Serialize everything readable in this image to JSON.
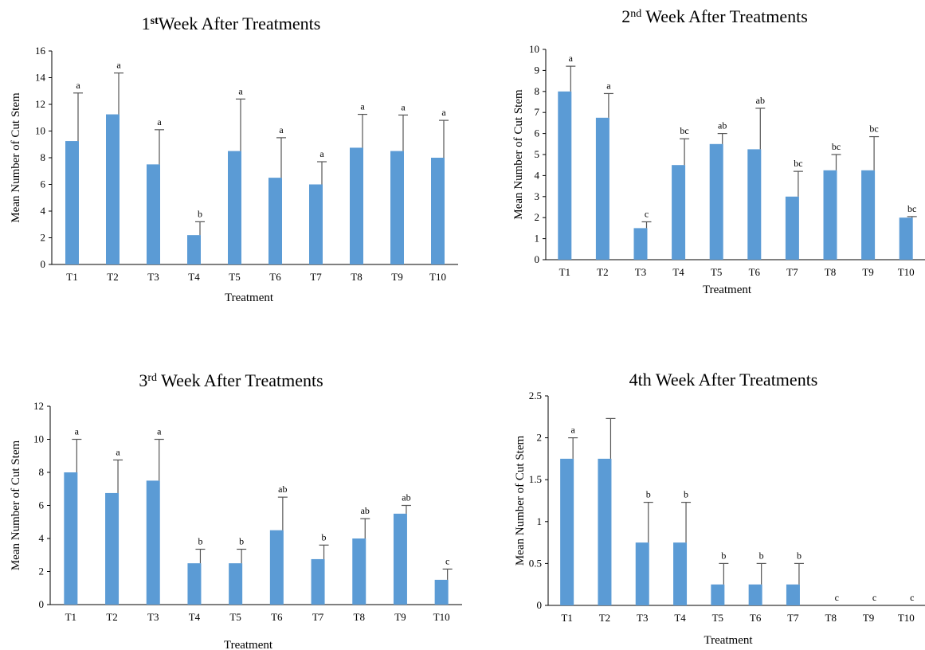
{
  "chart_data": [
    {
      "type": "bar",
      "title_main": "Week After Treatments",
      "title_prefix": "1",
      "title_sup": "st",
      "xlabel": "Treatment",
      "ylabel": "Mean Number of Cut Stem",
      "ylim": [
        0,
        16
      ],
      "yticks": [
        0,
        2,
        4,
        6,
        8,
        10,
        12,
        14,
        16
      ],
      "categories": [
        "T1",
        "T2",
        "T3",
        "T4",
        "T5",
        "T6",
        "T7",
        "T8",
        "T9",
        "T10"
      ],
      "values": [
        9.25,
        11.25,
        7.5,
        2.2,
        8.5,
        6.5,
        6.0,
        8.75,
        8.5,
        8.0
      ],
      "errors": [
        3.6,
        3.1,
        2.6,
        1.0,
        3.9,
        3.0,
        1.7,
        2.5,
        2.7,
        2.8
      ],
      "letters": [
        "a",
        "a",
        "a",
        "b",
        "a",
        "a",
        "a",
        "a",
        "a",
        "a"
      ],
      "color": "#5b9bd5"
    },
    {
      "type": "bar",
      "title_main": " Week After Treatments",
      "title_prefix": "2",
      "title_sup": "nd",
      "xlabel": "Treatment",
      "ylabel": "Mean Number of Cut Stem",
      "ylim": [
        0,
        10
      ],
      "yticks": [
        0,
        1,
        2,
        3,
        4,
        5,
        6,
        7,
        8,
        9,
        10
      ],
      "categories": [
        "T1",
        "T2",
        "T3",
        "T4",
        "T5",
        "T6",
        "T7",
        "T8",
        "T9",
        "T10"
      ],
      "values": [
        8.0,
        6.75,
        1.5,
        4.5,
        5.5,
        5.25,
        3.0,
        4.25,
        4.25,
        2.0
      ],
      "errors": [
        1.2,
        1.15,
        0.3,
        1.25,
        0.5,
        1.95,
        1.2,
        0.75,
        1.6,
        0.05
      ],
      "letters": [
        "a",
        "a",
        "c",
        "bc",
        "ab",
        "ab",
        "bc",
        "bc",
        "bc",
        "bc"
      ],
      "color": "#5b9bd5"
    },
    {
      "type": "bar",
      "title_main": " Week After Treatments",
      "title_prefix": "3",
      "title_sup": "rd",
      "xlabel": "Treatment",
      "ylabel": "Mean Number of  Cut Stem",
      "ylim": [
        0,
        12
      ],
      "yticks": [
        0,
        2,
        4,
        6,
        8,
        10,
        12
      ],
      "categories": [
        "T1",
        "T2",
        "T3",
        "T4",
        "T5",
        "T6",
        "T7",
        "T8",
        "T9",
        "T10"
      ],
      "values": [
        8.0,
        6.75,
        7.5,
        2.5,
        2.5,
        4.5,
        2.75,
        4.0,
        5.5,
        1.5
      ],
      "errors": [
        2.0,
        2.0,
        2.5,
        0.85,
        0.85,
        2.0,
        0.85,
        1.2,
        0.5,
        0.65
      ],
      "letters": [
        "a",
        "a",
        "a",
        "b",
        "b",
        "ab",
        "b",
        "ab",
        "ab",
        "c"
      ],
      "color": "#5b9bd5"
    },
    {
      "type": "bar",
      "title_main": "4th Week After Treatments",
      "title_prefix": "",
      "title_sup": "",
      "xlabel": "Treatment",
      "ylabel": "Mean Number of Cut Stem",
      "ylim": [
        0,
        2.5
      ],
      "yticks": [
        0,
        0.5,
        1,
        1.5,
        2,
        2.5
      ],
      "categories": [
        "T1",
        "T2",
        "T3",
        "T4",
        "T5",
        "T6",
        "T7",
        "T8",
        "T9",
        "T10"
      ],
      "values": [
        1.75,
        1.75,
        0.75,
        0.75,
        0.25,
        0.25,
        0.25,
        0,
        0,
        0
      ],
      "errors": [
        0.25,
        0.48,
        0.48,
        0.48,
        0.25,
        0.25,
        0.25,
        0,
        0,
        0
      ],
      "letters": [
        "a",
        "",
        "b",
        "b",
        "b",
        "b",
        "b",
        "c",
        "c",
        "c"
      ],
      "color": "#5b9bd5"
    }
  ]
}
